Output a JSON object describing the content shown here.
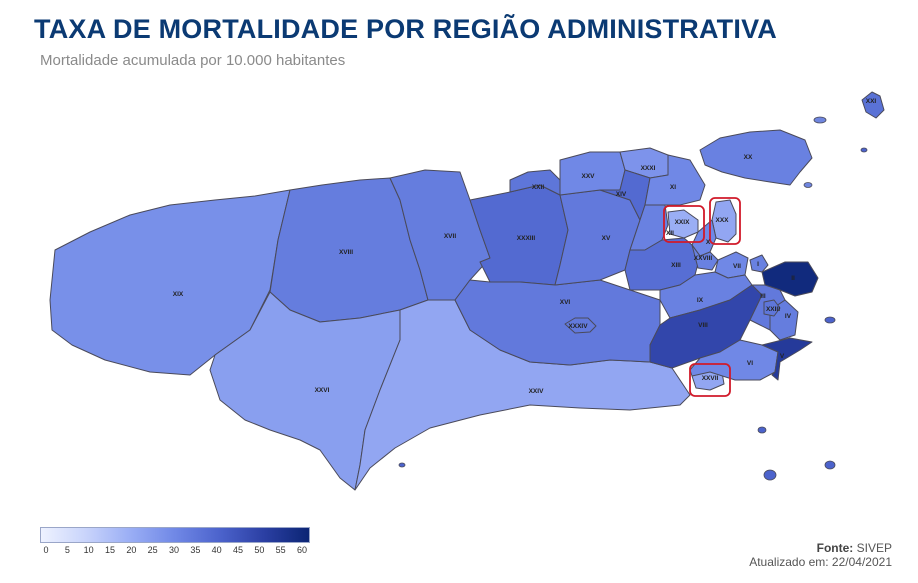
{
  "title": "TAXA DE MORTALIDADE POR REGIÃO ADMINISTRATIVA",
  "subtitle": "Mortalidade acumulada por 10.000 habitantes",
  "regions": [
    {
      "id": "XIX",
      "level": 28
    },
    {
      "id": "XVIII",
      "level": 33
    },
    {
      "id": "XVII",
      "level": 33
    },
    {
      "id": "XXXIII",
      "level": 38
    },
    {
      "id": "XXVI",
      "level": 24
    },
    {
      "id": "XXIV",
      "level": 22
    },
    {
      "id": "XVI",
      "level": 34
    },
    {
      "id": "XXXIV",
      "level": 34
    },
    {
      "id": "XV",
      "level": 34
    },
    {
      "id": "XXII",
      "level": 35
    },
    {
      "id": "XXV",
      "level": 30
    },
    {
      "id": "XXXI",
      "level": 27
    },
    {
      "id": "XIV",
      "level": 38
    },
    {
      "id": "XI",
      "level": 30
    },
    {
      "id": "XXIX",
      "level": 20
    },
    {
      "id": "XII",
      "level": 32
    },
    {
      "id": "XXX",
      "level": 22
    },
    {
      "id": "X",
      "level": 30
    },
    {
      "id": "XIII",
      "level": 37
    },
    {
      "id": "XXVIII",
      "level": 32
    },
    {
      "id": "VII",
      "level": 30
    },
    {
      "id": "IX",
      "level": 32
    },
    {
      "id": "VIII",
      "level": 48
    },
    {
      "id": "XXVII",
      "level": 22
    },
    {
      "id": "VI",
      "level": 30
    },
    {
      "id": "V",
      "level": 52
    },
    {
      "id": "IV",
      "level": 33
    },
    {
      "id": "II",
      "level": 58
    },
    {
      "id": "I",
      "level": 32
    },
    {
      "id": "III",
      "level": 34
    },
    {
      "id": "XXIII",
      "level": 35
    },
    {
      "id": "XX",
      "level": 32
    },
    {
      "id": "XXI",
      "level": 36
    }
  ],
  "highlighted": [
    "XXIX",
    "XXX",
    "XXVII"
  ],
  "legend": {
    "ticks": [
      "0",
      "5",
      "10",
      "15",
      "20",
      "25",
      "30",
      "35",
      "40",
      "45",
      "50",
      "55",
      "60"
    ],
    "min": 0,
    "max": 60,
    "colors": [
      "#eef2ff",
      "#c9d4fb",
      "#9aaef5",
      "#7088e6",
      "#4c63cc",
      "#2b3fa3",
      "#0b2574"
    ]
  },
  "source_label": "Fonte:",
  "source_value": "SIVEP",
  "updated": "Atualizado em: 22/04/2021"
}
